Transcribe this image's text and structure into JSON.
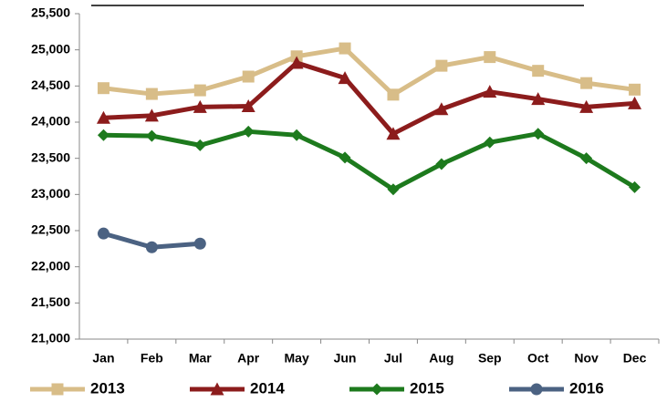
{
  "chart_data": {
    "type": "line",
    "categories": [
      "Jan",
      "Feb",
      "Mar",
      "Apr",
      "May",
      "Jun",
      "Jul",
      "Aug",
      "Sep",
      "Oct",
      "Nov",
      "Dec"
    ],
    "series": [
      {
        "name": "2013",
        "color": "#d8bd88",
        "marker": "square",
        "values": [
          24470,
          24390,
          24440,
          24630,
          24910,
          25020,
          24380,
          24780,
          24900,
          24710,
          24540,
          24450
        ]
      },
      {
        "name": "2014",
        "color": "#8c1c1c",
        "marker": "triangle",
        "values": [
          24060,
          24090,
          24210,
          24220,
          24820,
          24610,
          23840,
          24180,
          24420,
          24320,
          24210,
          24260
        ]
      },
      {
        "name": "2015",
        "color": "#1d7a1d",
        "marker": "diamond",
        "values": [
          23820,
          23810,
          23680,
          23870,
          23820,
          23510,
          23070,
          23420,
          23720,
          23840,
          23500,
          23100
        ]
      },
      {
        "name": "2016",
        "color": "#4b6282",
        "marker": "circle",
        "values": [
          22460,
          22270,
          22320,
          null,
          null,
          null,
          null,
          null,
          null,
          null,
          null,
          null
        ]
      }
    ],
    "ylim": [
      21000,
      25500
    ],
    "yticks": [
      {
        "value": 21000,
        "label": "21,000"
      },
      {
        "value": 21500,
        "label": "21,500"
      },
      {
        "value": 22000,
        "label": "22,000"
      },
      {
        "value": 22500,
        "label": "22,500"
      },
      {
        "value": 23000,
        "label": "23,000"
      },
      {
        "value": 23500,
        "label": "23,500"
      },
      {
        "value": 24000,
        "label": "24,000"
      },
      {
        "value": 24500,
        "label": "24,500"
      },
      {
        "value": 25000,
        "label": "25,000"
      },
      {
        "value": 25500,
        "label": "25,500"
      }
    ],
    "grid": false,
    "legend": "bottom"
  }
}
